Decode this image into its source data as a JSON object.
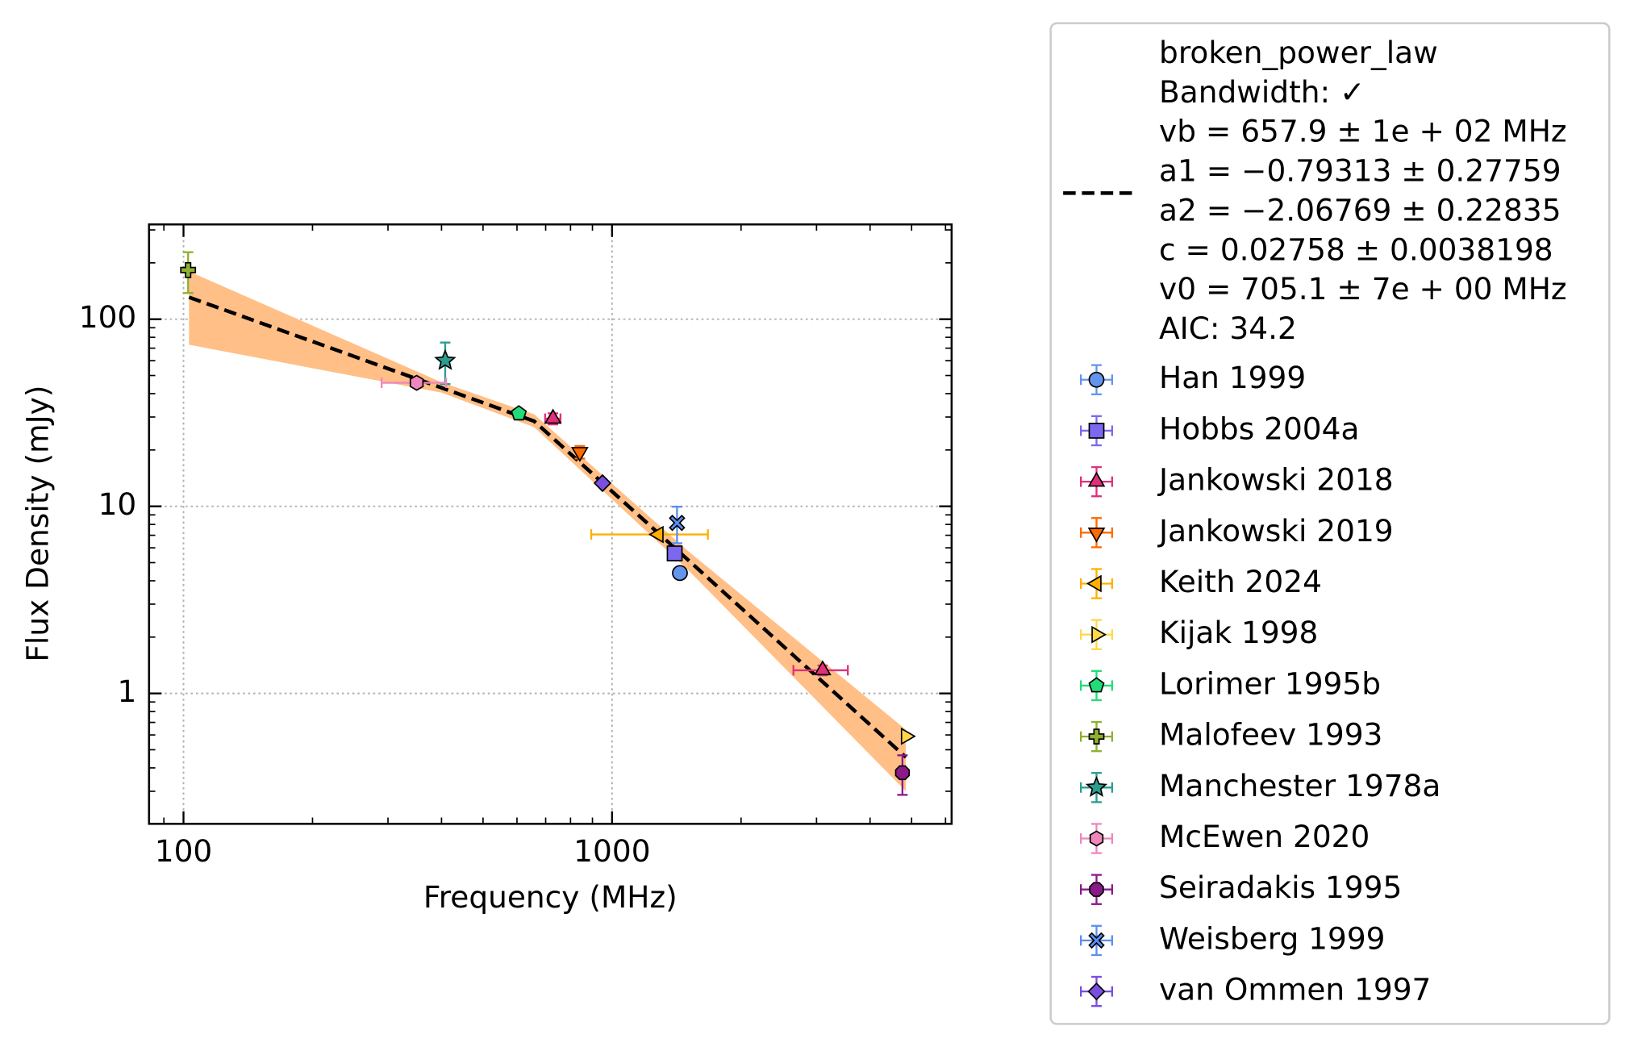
{
  "chart_data": {
    "type": "scatter",
    "x_label": "Frequency (MHz)",
    "y_label": "Flux Density (mJy)",
    "log_x": true,
    "log_y": true,
    "grid": true,
    "legend": "outside right",
    "xlim": [
      83.1,
      6200
    ],
    "ylim": [
      0.201,
      321
    ],
    "xticks": [
      100,
      1000
    ],
    "yticks": [
      1,
      10,
      100
    ],
    "fit": {
      "label_lines": [
        "broken_power_law",
        "Bandwidth: ✓",
        "vb = 657.9 ± 1e + 02 MHz",
        "a1 = −0.79313 ± 0.27759",
        "a2 = −2.06769 ± 0.22835",
        "c = 0.02758 ± 0.0038198",
        "v0 = 705.1 ± 7e + 00 MHz",
        "AIC: 34.2"
      ],
      "color": "#000000",
      "band_color": "#ffbf86",
      "x": [
        103,
        400,
        658,
        1500,
        4850
      ],
      "values": [
        131,
        43,
        28.5,
        5.2,
        0.456
      ],
      "band_upper": [
        180,
        46,
        31,
        5.8,
        0.64
      ],
      "band_lower": [
        73,
        40.5,
        26.5,
        4.6,
        0.3
      ]
    },
    "series": [
      {
        "name": "Han 1999",
        "color": "#6495ed",
        "marker": "circle",
        "x": [
          1440
        ],
        "values": [
          4.4
        ]
      },
      {
        "name": "Hobbs 2004a",
        "color": "#7b68ee",
        "marker": "square",
        "x": [
          1400
        ],
        "values": [
          5.6
        ]
      },
      {
        "name": "Jankowski 2018",
        "color": "#e0307a",
        "marker": "triangle-up",
        "x": [
          728,
          3100
        ],
        "values": [
          29.4,
          1.33
        ],
        "xerr": [
          30,
          450
        ],
        "yerr": [
          2,
          0.08
        ]
      },
      {
        "name": "Jankowski 2019",
        "color": "#ff6a00",
        "marker": "triangle-down",
        "x": [
          841
        ],
        "values": [
          19.5
        ],
        "yerr": [
          1.5
        ]
      },
      {
        "name": "Keith 2024",
        "color": "#ffb000",
        "marker": "triangle-left",
        "x": [
          1284
        ],
        "values": [
          7.07
        ],
        "xerr": [
          390
        ]
      },
      {
        "name": "Kijak 1998",
        "color": "#ffd84a",
        "marker": "triangle-right",
        "x": [
          4850
        ],
        "values": [
          0.59
        ]
      },
      {
        "name": "Lorimer 1995b",
        "color": "#22dd77",
        "marker": "pentagon",
        "x": [
          606
        ],
        "values": [
          31.3
        ],
        "yerr": [
          1.5
        ]
      },
      {
        "name": "Malofeev 1993",
        "color": "#8fb030",
        "marker": "plus",
        "x": [
          102.5
        ],
        "values": [
          183
        ],
        "yerr": [
          45
        ]
      },
      {
        "name": "Manchester 1978a",
        "color": "#2a9d8f",
        "marker": "star",
        "x": [
          408
        ],
        "values": [
          60
        ],
        "yerr": [
          15
        ]
      },
      {
        "name": "McEwen 2020",
        "color": "#ee88bb",
        "marker": "hexagon",
        "x": [
          350
        ],
        "values": [
          45.7
        ],
        "xerr": [
          60
        ]
      },
      {
        "name": "Seiradakis 1995",
        "color": "#8b1a89",
        "marker": "octagon",
        "x": [
          4760
        ],
        "values": [
          0.377
        ],
        "xerr": [
          100
        ],
        "yerr": [
          0.09
        ]
      },
      {
        "name": "Weisberg 1999",
        "color": "#5b8ff0",
        "marker": "x",
        "x": [
          1418
        ],
        "values": [
          8.15
        ],
        "yerr": [
          1.8
        ]
      },
      {
        "name": "van Ommen 1997",
        "color": "#7a4fe0",
        "marker": "diamond",
        "x": [
          950
        ],
        "values": [
          13.3
        ]
      }
    ]
  }
}
